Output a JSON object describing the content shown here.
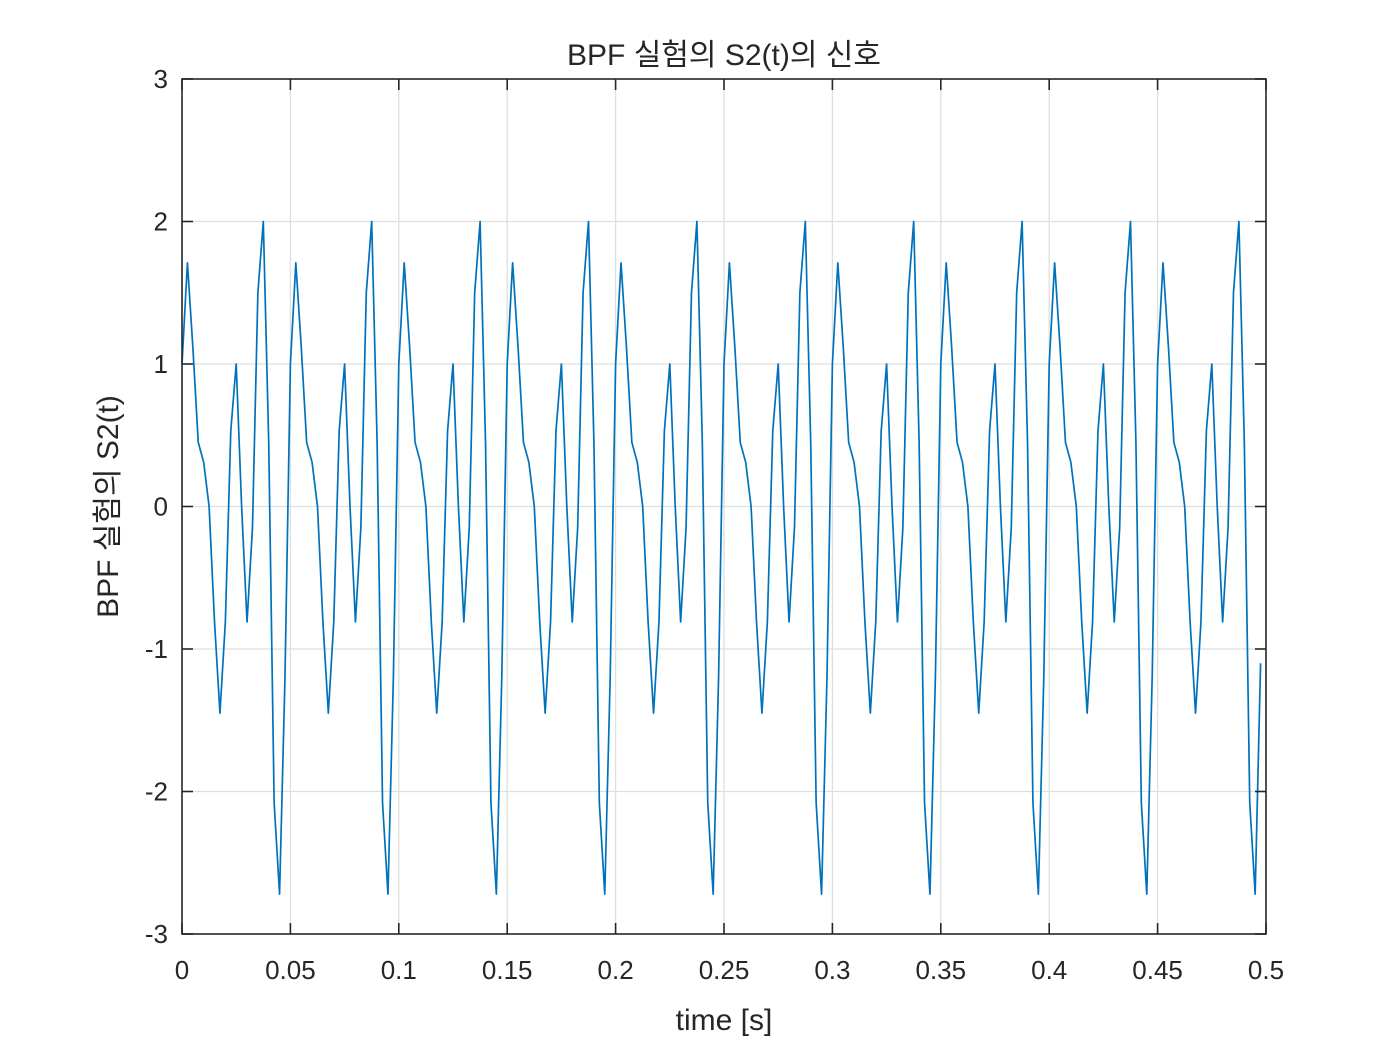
{
  "chart_data": {
    "type": "line",
    "title": "BPF 실험의 S2(t)의 신호",
    "xlabel": "time [s]",
    "ylabel": "BPF 실험의 S2(t)",
    "xlim": [
      0,
      0.5
    ],
    "ylim": [
      -3,
      3
    ],
    "grid": true,
    "xticks": [
      0,
      0.05,
      0.1,
      0.15,
      0.2,
      0.25,
      0.3,
      0.35,
      0.4,
      0.45,
      0.5
    ],
    "xtick_labels": [
      "0",
      "0.05",
      "0.1",
      "0.15",
      "0.2",
      "0.25",
      "0.3",
      "0.35",
      "0.4",
      "0.45",
      "0.5"
    ],
    "yticks": [
      -3,
      -2,
      -1,
      0,
      1,
      2,
      3
    ],
    "ytick_labels": [
      "-3",
      "-2",
      "-1",
      "0",
      "1",
      "2",
      "3"
    ],
    "colors": {
      "series": "#0072BD",
      "grid": "#dfdfdf",
      "axes": "#262626"
    },
    "series": [
      {
        "x": [
          0,
          0.0025,
          0.005,
          0.0075,
          0.01,
          0.0125,
          0.015,
          0.0175,
          0.02,
          0.0225,
          0.025,
          0.0275,
          0.03,
          0.0325,
          0.035,
          0.0375,
          0.04,
          0.0425,
          0.045,
          0.0475,
          0.05,
          0.0525,
          0.055,
          0.0575,
          0.06,
          0.0625,
          0.065,
          0.0675,
          0.07,
          0.0725,
          0.075,
          0.0775,
          0.08,
          0.0825,
          0.085,
          0.0875,
          0.09,
          0.0925,
          0.095,
          0.0975,
          0.1,
          0.1025,
          0.105,
          0.1075,
          0.11,
          0.1125,
          0.115,
          0.1175,
          0.12,
          0.1225,
          0.125,
          0.1275,
          0.13,
          0.1325,
          0.135,
          0.1375,
          0.14,
          0.1425,
          0.145,
          0.1475,
          0.15,
          0.1525,
          0.155,
          0.1575,
          0.16,
          0.1625,
          0.165,
          0.1675,
          0.17,
          0.1725,
          0.175,
          0.1775,
          0.18,
          0.1825,
          0.185,
          0.1875,
          0.19,
          0.1925,
          0.195,
          0.1975,
          0.2,
          0.2025,
          0.205,
          0.2075,
          0.21,
          0.2125,
          0.215,
          0.2175,
          0.22,
          0.2225,
          0.225,
          0.2275,
          0.23,
          0.2325,
          0.235,
          0.2375,
          0.24,
          0.2425,
          0.245,
          0.2475,
          0.25,
          0.2525,
          0.255,
          0.2575,
          0.26,
          0.2625,
          0.265,
          0.2675,
          0.27,
          0.2725,
          0.275,
          0.2775,
          0.28,
          0.2825,
          0.285,
          0.2875,
          0.29,
          0.2925,
          0.295,
          0.2975,
          0.3,
          0.3025,
          0.305,
          0.3075,
          0.31,
          0.3125,
          0.315,
          0.3175,
          0.32,
          0.3225,
          0.325,
          0.3275,
          0.33,
          0.3325,
          0.335,
          0.3375,
          0.34,
          0.3425,
          0.345,
          0.3475,
          0.35,
          0.3525,
          0.355,
          0.3575,
          0.36,
          0.3625,
          0.365,
          0.3675,
          0.37,
          0.3725,
          0.375,
          0.3775,
          0.38,
          0.3825,
          0.385,
          0.3875,
          0.39,
          0.3925,
          0.395,
          0.3975,
          0.4,
          0.4025,
          0.405,
          0.4075,
          0.41,
          0.4125,
          0.415,
          0.4175,
          0.42,
          0.4225,
          0.425,
          0.4275,
          0.43,
          0.4325,
          0.435,
          0.4375,
          0.44,
          0.4425,
          0.445,
          0.4475,
          0.45,
          0.4525,
          0.455,
          0.4575,
          0.46,
          0.4625,
          0.465,
          0.4675,
          0.47,
          0.4725,
          0.475,
          0.4775,
          0.48,
          0.4825,
          0.485,
          0.4875,
          0.49,
          0.4925,
          0.495,
          0.4975
        ],
        "y": [
          1,
          1.71,
          1.12,
          0.45,
          0.31,
          0,
          -0.81,
          -1.45,
          -0.81,
          0.53,
          1,
          0,
          -0.81,
          -0.15,
          1.5,
          2,
          0.45,
          -2.08,
          -2.72,
          -1.2,
          1,
          1.71,
          1.12,
          0.45,
          0.31,
          0,
          -0.81,
          -1.45,
          -0.81,
          0.53,
          1,
          0,
          -0.81,
          -0.15,
          1.5,
          2,
          0.45,
          -2.08,
          -2.72,
          -1.2,
          1,
          1.71,
          1.12,
          0.45,
          0.31,
          0,
          -0.81,
          -1.45,
          -0.81,
          0.53,
          1,
          0,
          -0.81,
          -0.15,
          1.5,
          2,
          0.45,
          -2.08,
          -2.72,
          -1.2,
          1,
          1.71,
          1.12,
          0.45,
          0.31,
          0,
          -0.81,
          -1.45,
          -0.81,
          0.53,
          1,
          0,
          -0.81,
          -0.15,
          1.5,
          2,
          0.45,
          -2.08,
          -2.72,
          -1.2,
          1,
          1.71,
          1.12,
          0.45,
          0.31,
          0,
          -0.81,
          -1.45,
          -0.81,
          0.53,
          1,
          0,
          -0.81,
          -0.15,
          1.5,
          2,
          0.45,
          -2.08,
          -2.72,
          -1.2,
          1,
          1.71,
          1.12,
          0.45,
          0.31,
          0,
          -0.81,
          -1.45,
          -0.81,
          0.53,
          1,
          0,
          -0.81,
          -0.15,
          1.5,
          2,
          0.45,
          -2.08,
          -2.72,
          -1.2,
          1,
          1.71,
          1.12,
          0.45,
          0.31,
          0,
          -0.81,
          -1.45,
          -0.81,
          0.53,
          1,
          0,
          -0.81,
          -0.15,
          1.5,
          2,
          0.45,
          -2.08,
          -2.72,
          -1.2,
          1,
          1.71,
          1.12,
          0.45,
          0.31,
          0,
          -0.81,
          -1.45,
          -0.81,
          0.53,
          1,
          0,
          -0.81,
          -0.15,
          1.5,
          2,
          0.45,
          -2.08,
          -2.72,
          -1.2,
          1,
          1.71,
          1.12,
          0.45,
          0.31,
          0,
          -0.81,
          -1.45,
          -0.81,
          0.53,
          1,
          0,
          -0.81,
          -0.15,
          1.5,
          2,
          0.45,
          -2.08,
          -2.72,
          -1.2,
          1,
          1.71,
          1.12,
          0.45,
          0.31,
          0,
          -0.81,
          -1.45,
          -0.81,
          0.53,
          1,
          0,
          -0.81,
          -0.15,
          1.5,
          2,
          0.45,
          -2.08,
          -2.72,
          -1.1
        ]
      }
    ]
  }
}
